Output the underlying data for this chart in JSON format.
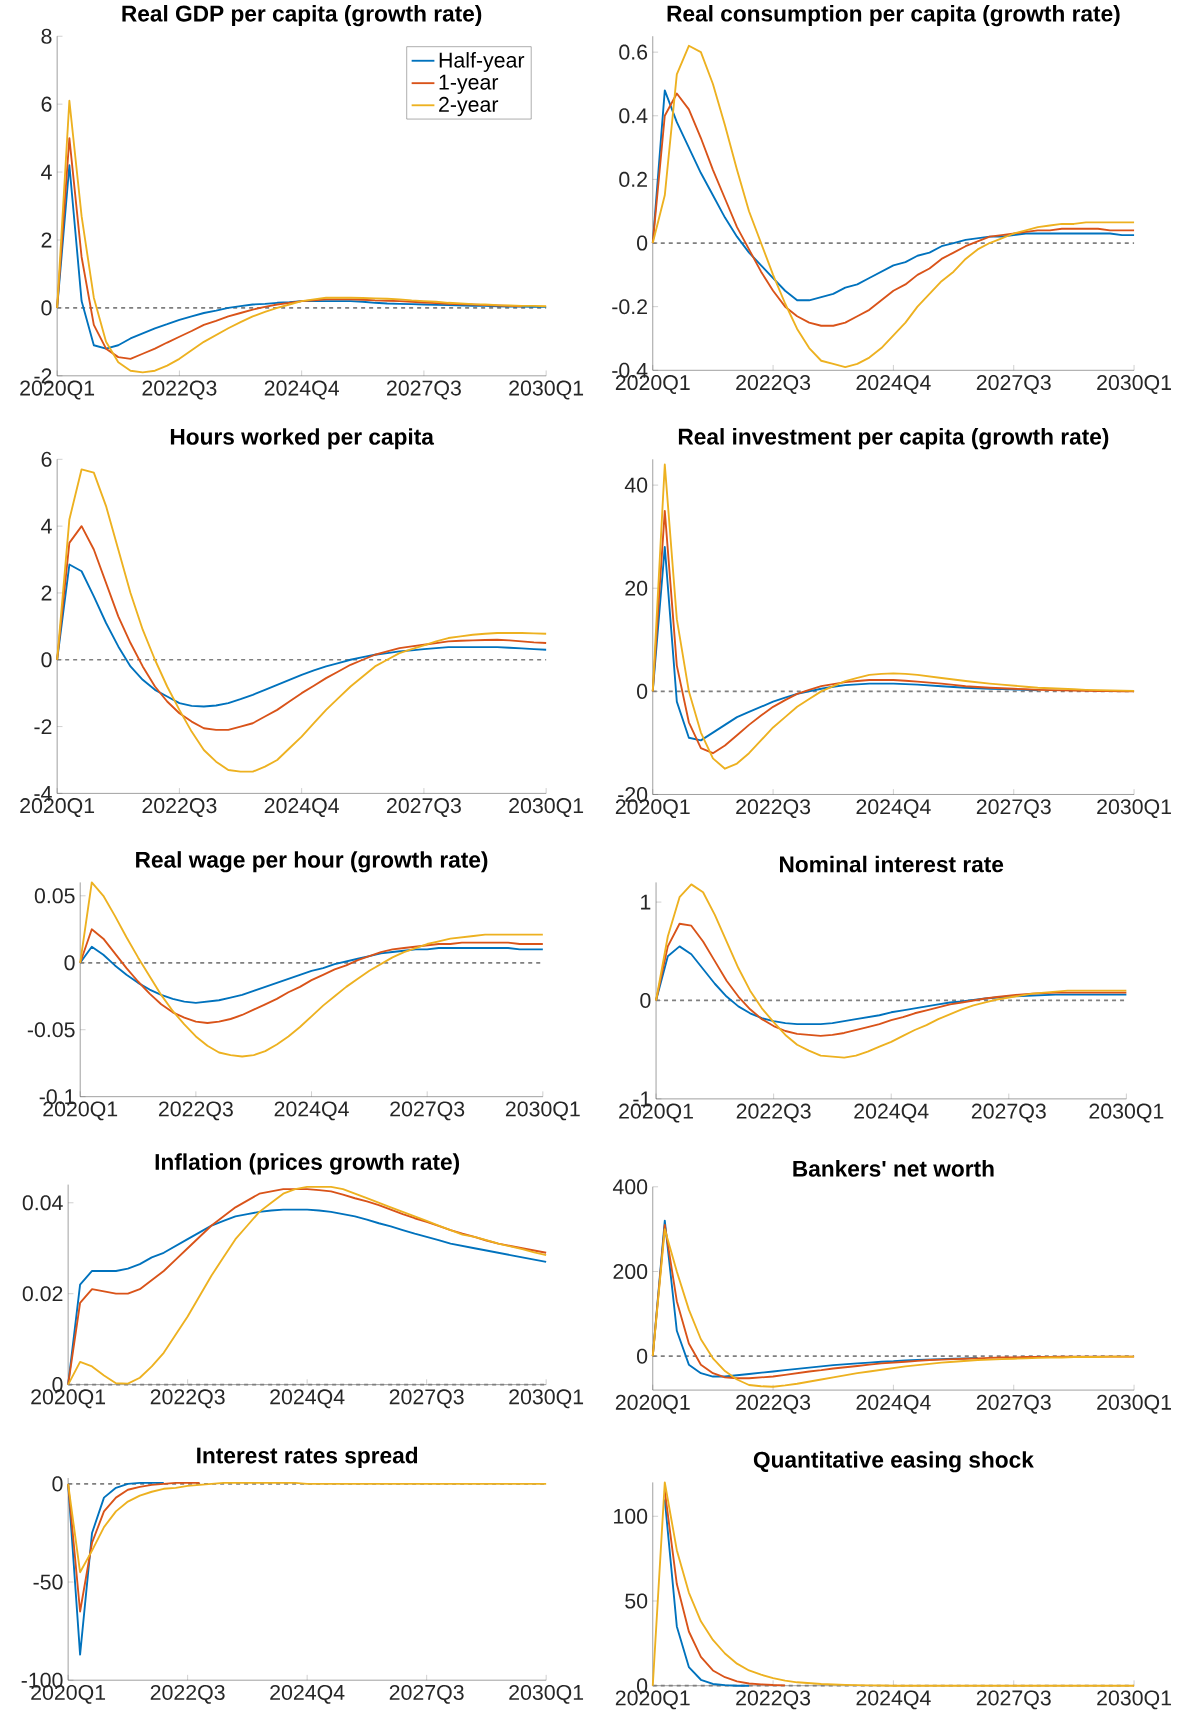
{
  "chart_data": [
    {
      "type": "line",
      "title": "Real GDP per capita (growth rate)",
      "marker": "none",
      "line_style": "solid",
      "legend": "top right",
      "categories": [
        "2020Q1",
        null,
        null,
        null,
        null,
        null,
        null,
        null,
        null,
        null,
        "2022Q3",
        null,
        null,
        null,
        null,
        null,
        null,
        null,
        null,
        null,
        "2024Q4",
        null,
        null,
        null,
        null,
        null,
        null,
        null,
        null,
        null,
        "2027Q3",
        null,
        null,
        null,
        null,
        null,
        null,
        null,
        null,
        null,
        "2030Q1"
      ],
      "ylim": [
        -2,
        8
      ],
      "yticks": [
        -2,
        0,
        2,
        4,
        6,
        8
      ],
      "ref_lines": [
        {
          "axis": "y",
          "value": 0,
          "color": "#7f7f7f",
          "line_style": "dashed"
        }
      ],
      "series": [
        {
          "name": "Half-year",
          "color": "#0072bd",
          "values": [
            0,
            4.2,
            0.2,
            -1.1,
            -1.2,
            -1.1,
            -0.9,
            -0.75,
            -0.6,
            -0.48,
            -0.35,
            -0.25,
            -0.15,
            -0.08,
            0.0,
            0.05,
            0.1,
            0.12,
            0.15,
            0.17,
            0.2,
            0.2,
            0.2,
            0.2,
            0.2,
            0.18,
            0.15,
            0.13,
            0.12,
            0.11,
            0.1,
            0.09,
            0.08,
            0.07,
            0.06,
            0.06,
            0.05,
            0.04,
            0.04,
            0.03,
            0.03
          ]
        },
        {
          "name": "1-year",
          "color": "#d95319",
          "values": [
            0,
            5.0,
            1.5,
            -0.5,
            -1.2,
            -1.45,
            -1.5,
            -1.35,
            -1.2,
            -1.02,
            -0.85,
            -0.68,
            -0.5,
            -0.38,
            -0.25,
            -0.15,
            -0.05,
            0.03,
            0.1,
            0.15,
            0.2,
            0.22,
            0.25,
            0.25,
            0.25,
            0.24,
            0.22,
            0.21,
            0.2,
            0.18,
            0.16,
            0.14,
            0.12,
            0.11,
            0.1,
            0.08,
            0.07,
            0.06,
            0.05,
            null,
            null
          ]
        },
        {
          "name": "2-year",
          "color": "#edb120",
          "values": [
            0,
            6.1,
            2.7,
            0.3,
            -1.0,
            -1.6,
            -1.85,
            -1.9,
            -1.85,
            -1.7,
            -1.5,
            -1.25,
            -1.0,
            -0.8,
            -0.6,
            -0.42,
            -0.25,
            -0.12,
            0.0,
            0.1,
            0.2,
            0.25,
            0.3,
            0.3,
            0.3,
            0.29,
            0.28,
            0.27,
            0.25,
            0.22,
            0.2,
            0.18,
            0.15,
            0.13,
            0.11,
            0.1,
            0.08,
            0.07,
            0.06,
            0.06,
            0.05
          ]
        }
      ]
    },
    {
      "type": "line",
      "title": "Real consumption per capita (growth rate)",
      "marker": "none",
      "line_style": "solid",
      "categories": [
        "2020Q1",
        null,
        null,
        null,
        null,
        null,
        null,
        null,
        null,
        null,
        "2022Q3",
        null,
        null,
        null,
        null,
        null,
        null,
        null,
        null,
        null,
        "2024Q4",
        null,
        null,
        null,
        null,
        null,
        null,
        null,
        null,
        null,
        "2027Q3",
        null,
        null,
        null,
        null,
        null,
        null,
        null,
        null,
        null,
        "2030Q1"
      ],
      "ylim": [
        -0.4,
        0.65
      ],
      "yticks": [
        -0.4,
        -0.2,
        0,
        0.2,
        0.4,
        0.6
      ],
      "ref_lines": [
        {
          "axis": "y",
          "value": 0,
          "color": "#7f7f7f",
          "line_style": "dashed"
        }
      ],
      "series": [
        {
          "color": "#0072bd",
          "values": [
            0,
            0.48,
            0.38,
            0.3,
            0.22,
            0.15,
            0.08,
            0.02,
            -0.03,
            -0.07,
            -0.11,
            -0.15,
            -0.18,
            -0.18,
            -0.17,
            -0.16,
            -0.14,
            -0.13,
            -0.11,
            -0.09,
            -0.07,
            -0.06,
            -0.04,
            -0.03,
            -0.01,
            0.0,
            0.01,
            0.015,
            0.02,
            0.02,
            0.025,
            0.03,
            0.03,
            0.03,
            0.03,
            0.03,
            0.03,
            0.03,
            0.03,
            0.025,
            0.025
          ]
        },
        {
          "color": "#d95319",
          "values": [
            0,
            0.4,
            0.47,
            0.42,
            0.33,
            0.23,
            0.14,
            0.05,
            -0.02,
            -0.09,
            -0.15,
            -0.2,
            -0.23,
            -0.25,
            -0.26,
            -0.26,
            -0.25,
            -0.23,
            -0.21,
            -0.18,
            -0.15,
            -0.13,
            -0.1,
            -0.08,
            -0.05,
            -0.03,
            -0.01,
            0.005,
            0.02,
            0.025,
            0.03,
            0.035,
            0.04,
            0.04,
            0.045,
            0.045,
            0.045,
            0.045,
            0.04,
            0.04,
            0.04
          ]
        },
        {
          "color": "#edb120",
          "values": [
            0,
            0.15,
            0.53,
            0.62,
            0.6,
            0.5,
            0.37,
            0.23,
            0.1,
            0.0,
            -0.1,
            -0.19,
            -0.27,
            -0.33,
            -0.37,
            -0.38,
            -0.39,
            -0.38,
            -0.36,
            -0.33,
            -0.29,
            -0.25,
            -0.2,
            -0.16,
            -0.12,
            -0.09,
            -0.05,
            -0.02,
            0.0,
            0.015,
            0.03,
            0.04,
            0.05,
            0.055,
            0.06,
            0.06,
            0.065,
            0.065,
            0.065,
            0.065,
            0.065
          ]
        }
      ]
    },
    {
      "type": "line",
      "title": "Hours worked per capita",
      "marker": "none",
      "line_style": "solid",
      "categories": [
        "2020Q1",
        null,
        null,
        null,
        null,
        null,
        null,
        null,
        null,
        null,
        "2022Q3",
        null,
        null,
        null,
        null,
        null,
        null,
        null,
        null,
        null,
        "2024Q4",
        null,
        null,
        null,
        null,
        null,
        null,
        null,
        null,
        null,
        "2027Q3",
        null,
        null,
        null,
        null,
        null,
        null,
        null,
        null,
        null,
        "2030Q1"
      ],
      "ylim": [
        -4,
        6
      ],
      "yticks": [
        -4,
        -2,
        0,
        2,
        4,
        6
      ],
      "ref_lines": [
        {
          "axis": "y",
          "value": 0,
          "color": "#7f7f7f",
          "line_style": "dashed"
        }
      ],
      "series": [
        {
          "color": "#0072bd",
          "values": [
            0,
            2.85,
            2.65,
            1.9,
            1.1,
            0.4,
            -0.2,
            -0.6,
            -0.9,
            -1.1,
            -1.3,
            -1.38,
            -1.4,
            -1.37,
            -1.3,
            -1.18,
            -1.05,
            -0.9,
            -0.75,
            -0.6,
            -0.45,
            -0.32,
            -0.2,
            -0.1,
            0.0,
            0.08,
            0.15,
            0.2,
            0.25,
            0.28,
            0.32,
            0.35,
            0.38,
            0.38,
            0.38,
            0.38,
            0.38,
            0.36,
            0.34,
            0.32,
            0.3
          ]
        },
        {
          "color": "#d95319",
          "values": [
            0,
            3.5,
            4.0,
            3.3,
            2.3,
            1.3,
            0.5,
            -0.2,
            -0.8,
            -1.25,
            -1.6,
            -1.85,
            -2.05,
            -2.1,
            -2.1,
            -2.0,
            -1.9,
            -1.7,
            -1.5,
            -1.25,
            -1.0,
            -0.78,
            -0.55,
            -0.35,
            -0.15,
            0.0,
            0.15,
            0.25,
            0.35,
            0.4,
            0.45,
            0.5,
            0.55,
            0.57,
            0.58,
            0.59,
            0.6,
            0.58,
            0.55,
            0.52,
            0.5
          ]
        },
        {
          "color": "#edb120",
          "values": [
            0,
            4.2,
            5.7,
            5.6,
            4.6,
            3.3,
            2.0,
            0.9,
            0.0,
            -0.8,
            -1.5,
            -2.15,
            -2.7,
            -3.05,
            -3.3,
            -3.35,
            -3.35,
            -3.2,
            -3.0,
            -2.65,
            -2.3,
            -1.9,
            -1.5,
            -1.15,
            -0.8,
            -0.5,
            -0.2,
            0.0,
            0.2,
            0.32,
            0.43,
            0.55,
            0.65,
            0.7,
            0.75,
            0.78,
            0.8,
            0.8,
            0.8,
            0.79,
            0.78
          ]
        }
      ]
    },
    {
      "type": "line",
      "title": "Real investment per capita (growth rate)",
      "marker": "none",
      "line_style": "solid",
      "categories": [
        "2020Q1",
        null,
        null,
        null,
        null,
        null,
        null,
        null,
        null,
        null,
        "2022Q3",
        null,
        null,
        null,
        null,
        null,
        null,
        null,
        null,
        null,
        "2024Q4",
        null,
        null,
        null,
        null,
        null,
        null,
        null,
        null,
        null,
        "2027Q3",
        null,
        null,
        null,
        null,
        null,
        null,
        null,
        null,
        null,
        "2030Q1"
      ],
      "ylim": [
        -20,
        45
      ],
      "yticks": [
        -20,
        0,
        20,
        40
      ],
      "ref_lines": [
        {
          "axis": "y",
          "value": 0,
          "color": "#7f7f7f",
          "line_style": "dashed"
        }
      ],
      "series": [
        {
          "color": "#0072bd",
          "values": [
            0,
            28,
            -2,
            -9,
            -9.5,
            -8,
            -6.5,
            -5,
            -4,
            -3,
            -2,
            -1.2,
            -0.5,
            0.0,
            0.5,
            0.9,
            1.2,
            1.35,
            1.5,
            1.5,
            1.5,
            1.4,
            1.3,
            1.15,
            1.0,
            0.85,
            0.7,
            0.6,
            0.5,
            0.42,
            0.35,
            0.28,
            0.2,
            null,
            null,
            null,
            null,
            null,
            null,
            null,
            null
          ]
        },
        {
          "color": "#d95319",
          "values": [
            0,
            35,
            5,
            -6,
            -11,
            -12,
            -10.5,
            -8.5,
            -6.5,
            -4.7,
            -3,
            -1.7,
            -0.5,
            0.3,
            1.0,
            1.4,
            1.8,
            2.0,
            2.2,
            2.2,
            2.2,
            2.05,
            1.9,
            1.7,
            1.5,
            1.25,
            1.0,
            0.85,
            0.7,
            0.6,
            0.5,
            0.4,
            0.3,
            0.25,
            0.2,
            0.15,
            0.1,
            0.08,
            0.05,
            0.02,
            0.0
          ]
        },
        {
          "color": "#edb120",
          "values": [
            0,
            44,
            14,
            0,
            -8,
            -13,
            -15,
            -14,
            -12,
            -9.5,
            -7,
            -5,
            -3,
            -1.5,
            0,
            1.0,
            2,
            2.6,
            3.2,
            3.4,
            3.5,
            3.4,
            3.2,
            2.9,
            2.6,
            2.3,
            2.0,
            1.75,
            1.5,
            1.3,
            1.1,
            0.9,
            0.7,
            0.6,
            0.5,
            0.4,
            0.3,
            0.25,
            0.2,
            0.15,
            0.1
          ]
        }
      ]
    },
    {
      "type": "line",
      "title": "Real wage per hour (growth rate)",
      "marker": "none",
      "line_style": "solid",
      "categories": [
        "2020Q1",
        null,
        null,
        null,
        null,
        null,
        null,
        null,
        null,
        null,
        "2022Q3",
        null,
        null,
        null,
        null,
        null,
        null,
        null,
        null,
        null,
        "2024Q4",
        null,
        null,
        null,
        null,
        null,
        null,
        null,
        null,
        null,
        "2027Q3",
        null,
        null,
        null,
        null,
        null,
        null,
        null,
        null,
        null,
        "2030Q1"
      ],
      "ylim": [
        -0.1,
        0.06
      ],
      "yticks": [
        -0.1,
        -0.05,
        0,
        0.05
      ],
      "ref_lines": [
        {
          "axis": "y",
          "value": 0,
          "color": "#7f7f7f",
          "line_style": "dashed"
        }
      ],
      "series": [
        {
          "color": "#0072bd",
          "values": [
            0,
            0.012,
            0.006,
            -0.002,
            -0.009,
            -0.015,
            -0.02,
            -0.024,
            -0.027,
            -0.029,
            -0.03,
            -0.029,
            -0.028,
            -0.026,
            -0.024,
            -0.021,
            -0.018,
            -0.015,
            -0.012,
            -0.009,
            -0.006,
            -0.004,
            -0.001,
            0.001,
            0.003,
            0.005,
            0.007,
            0.008,
            0.009,
            0.01,
            0.01,
            0.011,
            0.011,
            0.011,
            0.011,
            0.011,
            0.011,
            0.011,
            0.01,
            0.01,
            0.01
          ]
        },
        {
          "color": "#d95319",
          "values": [
            0,
            0.025,
            0.018,
            0.007,
            -0.004,
            -0.014,
            -0.023,
            -0.031,
            -0.037,
            -0.041,
            -0.044,
            -0.045,
            -0.044,
            -0.042,
            -0.039,
            -0.035,
            -0.031,
            -0.027,
            -0.022,
            -0.018,
            -0.013,
            -0.009,
            -0.005,
            -0.002,
            0.002,
            0.005,
            0.008,
            0.01,
            0.011,
            0.012,
            0.013,
            0.014,
            0.014,
            0.015,
            0.015,
            0.015,
            0.015,
            0.015,
            0.014,
            0.014,
            0.014
          ]
        },
        {
          "color": "#edb120",
          "values": [
            0,
            0.06,
            0.05,
            0.035,
            0.019,
            0.004,
            -0.01,
            -0.024,
            -0.036,
            -0.046,
            -0.055,
            -0.062,
            -0.067,
            -0.069,
            -0.07,
            -0.069,
            -0.066,
            -0.061,
            -0.055,
            -0.048,
            -0.04,
            -0.032,
            -0.025,
            -0.018,
            -0.012,
            -0.006,
            -0.001,
            0.004,
            0.008,
            0.011,
            0.014,
            0.016,
            0.018,
            0.019,
            0.02,
            0.021,
            0.021,
            0.021,
            0.021,
            0.021,
            0.021
          ]
        }
      ]
    },
    {
      "type": "line",
      "title": "Nominal interest rate",
      "marker": "none",
      "line_style": "solid",
      "categories": [
        "2020Q1",
        null,
        null,
        null,
        null,
        null,
        null,
        null,
        null,
        null,
        "2022Q3",
        null,
        null,
        null,
        null,
        null,
        null,
        null,
        null,
        null,
        "2024Q4",
        null,
        null,
        null,
        null,
        null,
        null,
        null,
        null,
        null,
        "2027Q3",
        null,
        null,
        null,
        null,
        null,
        null,
        null,
        null,
        null,
        "2030Q1"
      ],
      "ylim": [
        -1,
        1.2
      ],
      "yticks": [
        -1,
        0,
        1
      ],
      "ref_lines": [
        {
          "axis": "y",
          "value": 0,
          "color": "#7f7f7f",
          "line_style": "dashed"
        }
      ],
      "series": [
        {
          "color": "#0072bd",
          "values": [
            0,
            0.45,
            0.55,
            0.47,
            0.32,
            0.17,
            0.04,
            -0.06,
            -0.13,
            -0.18,
            -0.21,
            -0.23,
            -0.24,
            -0.24,
            -0.24,
            -0.23,
            -0.21,
            -0.19,
            -0.17,
            -0.15,
            -0.12,
            -0.1,
            -0.08,
            -0.06,
            -0.04,
            -0.02,
            -0.01,
            0.005,
            0.02,
            0.03,
            0.04,
            0.045,
            0.05,
            0.055,
            0.06,
            0.06,
            0.06,
            0.06,
            0.06,
            0.06,
            0.06
          ]
        },
        {
          "color": "#d95319",
          "values": [
            0,
            0.55,
            0.78,
            0.76,
            0.6,
            0.4,
            0.2,
            0.04,
            -0.09,
            -0.19,
            -0.26,
            -0.31,
            -0.34,
            -0.35,
            -0.36,
            -0.35,
            -0.33,
            -0.3,
            -0.27,
            -0.24,
            -0.2,
            -0.17,
            -0.13,
            -0.1,
            -0.07,
            -0.04,
            -0.02,
            0.0,
            0.02,
            0.035,
            0.05,
            0.06,
            0.07,
            0.075,
            0.08,
            0.08,
            0.08,
            0.08,
            0.08,
            0.08,
            0.08
          ]
        },
        {
          "color": "#edb120",
          "values": [
            0,
            0.65,
            1.05,
            1.18,
            1.1,
            0.87,
            0.6,
            0.33,
            0.1,
            -0.08,
            -0.22,
            -0.35,
            -0.45,
            -0.51,
            -0.56,
            -0.57,
            -0.58,
            -0.56,
            -0.52,
            -0.47,
            -0.42,
            -0.36,
            -0.3,
            -0.25,
            -0.19,
            -0.14,
            -0.09,
            -0.05,
            -0.02,
            0.01,
            0.03,
            0.05,
            0.07,
            0.08,
            0.09,
            0.1,
            0.1,
            0.1,
            0.1,
            0.1,
            0.1
          ]
        }
      ]
    },
    {
      "type": "line",
      "title": "Inflation (prices growth rate)",
      "marker": "none",
      "line_style": "solid",
      "categories": [
        "2020Q1",
        null,
        null,
        null,
        null,
        null,
        null,
        null,
        null,
        null,
        "2022Q3",
        null,
        null,
        null,
        null,
        null,
        null,
        null,
        null,
        null,
        "2024Q4",
        null,
        null,
        null,
        null,
        null,
        null,
        null,
        null,
        null,
        "2027Q3",
        null,
        null,
        null,
        null,
        null,
        null,
        null,
        null,
        null,
        "2030Q1"
      ],
      "ylim": [
        0,
        0.044
      ],
      "yticks": [
        0,
        0.02,
        0.04
      ],
      "ref_lines": [
        {
          "axis": "y",
          "value": 0,
          "color": "#7f7f7f",
          "line_style": "dashed"
        }
      ],
      "series": [
        {
          "color": "#0072bd",
          "values": [
            0,
            0.022,
            0.025,
            0.025,
            0.025,
            0.0255,
            0.0265,
            0.028,
            0.029,
            0.0305,
            0.032,
            0.0335,
            0.035,
            0.036,
            0.037,
            0.0375,
            0.038,
            0.0383,
            0.0385,
            0.0385,
            0.0385,
            0.0383,
            0.038,
            0.0375,
            0.037,
            0.0363,
            0.0355,
            0.0348,
            0.034,
            0.0332,
            0.0325,
            0.0318,
            0.031,
            0.0305,
            0.03,
            0.0295,
            0.029,
            0.0285,
            0.028,
            0.0275,
            0.027
          ]
        },
        {
          "color": "#d95319",
          "values": [
            0,
            0.018,
            0.021,
            0.0205,
            0.02,
            0.02,
            0.021,
            0.023,
            0.025,
            0.0275,
            0.03,
            0.0325,
            0.035,
            0.037,
            0.039,
            0.0405,
            0.042,
            0.0425,
            0.043,
            0.043,
            0.043,
            0.0428,
            0.0425,
            0.0418,
            0.041,
            0.0403,
            0.0395,
            0.0385,
            0.0375,
            0.0366,
            0.0358,
            0.0349,
            0.034,
            0.0332,
            0.0325,
            0.0317,
            0.031,
            0.0305,
            0.03,
            0.0295,
            0.029
          ]
        },
        {
          "color": "#edb120",
          "values": [
            0,
            0.005,
            0.004,
            0.002,
            0.0003,
            0.0002,
            0.0015,
            0.004,
            0.007,
            0.011,
            0.015,
            0.0195,
            0.024,
            0.028,
            0.032,
            0.035,
            0.038,
            0.04,
            0.042,
            0.043,
            0.0435,
            0.0435,
            0.0435,
            0.043,
            0.042,
            0.041,
            0.04,
            0.039,
            0.038,
            0.037,
            0.036,
            0.035,
            0.034,
            0.033,
            0.0325,
            0.0318,
            0.031,
            0.0304,
            0.0298,
            0.0291,
            0.0285
          ]
        }
      ]
    },
    {
      "type": "line",
      "title": "Bankers' net worth",
      "marker": "none",
      "line_style": "solid",
      "categories": [
        "2020Q1",
        null,
        null,
        null,
        null,
        null,
        null,
        null,
        null,
        null,
        "2022Q3",
        null,
        null,
        null,
        null,
        null,
        null,
        null,
        null,
        null,
        "2024Q4",
        null,
        null,
        null,
        null,
        null,
        null,
        null,
        null,
        null,
        "2027Q3",
        null,
        null,
        null,
        null,
        null,
        null,
        null,
        null,
        null,
        "2030Q1"
      ],
      "ylim": [
        -80,
        400
      ],
      "yticks": [
        0,
        200,
        400
      ],
      "ref_lines": [
        {
          "axis": "y",
          "value": 0,
          "color": "#7f7f7f",
          "line_style": "dashed"
        }
      ],
      "series": [
        {
          "color": "#0072bd",
          "values": [
            0,
            320,
            60,
            -20,
            -40,
            -48,
            -48,
            -45,
            -42,
            -39,
            -36,
            -33,
            -30,
            -27,
            -24,
            -21,
            -19,
            -17,
            -15,
            -13,
            -12,
            -10,
            -9,
            -8,
            -7,
            -6,
            -5,
            -4,
            null,
            null,
            null,
            null,
            null,
            null,
            null,
            null,
            null,
            null,
            null,
            null,
            null
          ]
        },
        {
          "color": "#d95319",
          "values": [
            0,
            310,
            130,
            30,
            -20,
            -40,
            -50,
            -52,
            -52,
            -50,
            -48,
            -44,
            -40,
            -36,
            -33,
            -29,
            -26,
            -23,
            -20,
            -17,
            -15,
            -13,
            -11,
            -9,
            -8,
            -7,
            -6,
            -5,
            -4,
            -3,
            -3,
            -2,
            -2,
            -2,
            -1,
            -1,
            -1,
            -1,
            -1,
            -1,
            -1
          ]
        },
        {
          "color": "#edb120",
          "values": [
            0,
            300,
            200,
            110,
            40,
            -5,
            -35,
            -55,
            -68,
            -71,
            -72,
            -69,
            -65,
            -60,
            -55,
            -50,
            -45,
            -40,
            -36,
            -32,
            -28,
            -24,
            -21,
            -18,
            -15,
            -13,
            -11,
            -9,
            -8,
            -7,
            -6,
            -5,
            -4,
            -3,
            -3,
            -2,
            -2,
            -2,
            -1,
            -1,
            -1
          ]
        }
      ]
    },
    {
      "type": "line",
      "title": "Interest rates spread",
      "marker": "none",
      "line_style": "solid",
      "categories": [
        "2020Q1",
        null,
        null,
        null,
        null,
        null,
        null,
        null,
        null,
        null,
        "2022Q3",
        null,
        null,
        null,
        null,
        null,
        null,
        null,
        null,
        null,
        "2024Q4",
        null,
        null,
        null,
        null,
        null,
        null,
        null,
        null,
        null,
        "2027Q3",
        null,
        null,
        null,
        null,
        null,
        null,
        null,
        null,
        null,
        "2030Q1"
      ],
      "ylim": [
        -100,
        3
      ],
      "yticks": [
        -100,
        -50,
        0
      ],
      "ref_lines": [
        {
          "axis": "y",
          "value": 0,
          "color": "#7f7f7f",
          "line_style": "dashed"
        }
      ],
      "series": [
        {
          "color": "#0072bd",
          "values": [
            0,
            -87,
            -25,
            -7,
            -2,
            0,
            0.5,
            0.5,
            0.5,
            null,
            null,
            null,
            null,
            null,
            null,
            null,
            null,
            null,
            null,
            null,
            null,
            null,
            null,
            null,
            null,
            null,
            null,
            null,
            null,
            null,
            null,
            null,
            null,
            null,
            null,
            null,
            null,
            null,
            null,
            null,
            null
          ]
        },
        {
          "color": "#d95319",
          "values": [
            0,
            -65,
            -30,
            -14,
            -7,
            -3,
            -1.5,
            -0.5,
            0,
            0.5,
            0.5,
            0.5,
            null,
            null,
            null,
            null,
            null,
            null,
            null,
            null,
            null,
            null,
            null,
            null,
            null,
            null,
            null,
            null,
            null,
            null,
            null,
            null,
            null,
            null,
            null,
            null,
            null,
            null,
            null,
            null,
            null
          ]
        },
        {
          "color": "#edb120",
          "values": [
            0,
            -45,
            -34,
            -22,
            -14,
            -9,
            -6,
            -4,
            -2.5,
            -2,
            -1,
            -0.5,
            0,
            0.5,
            0.5,
            0.5,
            0.5,
            0.5,
            0.5,
            0.5,
            0,
            0,
            0,
            0,
            0,
            0,
            0,
            0,
            0,
            0,
            0,
            0,
            0,
            0,
            0,
            0,
            0,
            0,
            0,
            0,
            0
          ]
        }
      ]
    },
    {
      "type": "line",
      "title": "Quantitative easing shock",
      "marker": "none",
      "line_style": "solid",
      "categories": [
        "2020Q1",
        null,
        null,
        null,
        null,
        null,
        null,
        null,
        null,
        null,
        "2022Q3",
        null,
        null,
        null,
        null,
        null,
        null,
        null,
        null,
        null,
        "2024Q4",
        null,
        null,
        null,
        null,
        null,
        null,
        null,
        null,
        null,
        "2027Q3",
        null,
        null,
        null,
        null,
        null,
        null,
        null,
        null,
        null,
        "2030Q1"
      ],
      "ylim": [
        0,
        120
      ],
      "yticks": [
        0,
        50,
        100
      ],
      "ref_lines": [
        {
          "axis": "y",
          "value": 0,
          "color": "#7f7f7f",
          "line_style": "dashed"
        }
      ],
      "series": [
        {
          "color": "#0072bd",
          "values": [
            null,
            110,
            35,
            11,
            3.5,
            1,
            0.3,
            0,
            0,
            null,
            null,
            null,
            null,
            null,
            null,
            null,
            null,
            null,
            null,
            null,
            null,
            null,
            null,
            null,
            null,
            null,
            null,
            null,
            null,
            null,
            null,
            null,
            null,
            null,
            null,
            null,
            null,
            null,
            null,
            null,
            null
          ]
        },
        {
          "color": "#d95319",
          "values": [
            null,
            115,
            60,
            32,
            17,
            9,
            5,
            2.5,
            1.3,
            0.8,
            0.4,
            0.2,
            null,
            null,
            null,
            null,
            null,
            null,
            null,
            null,
            null,
            null,
            null,
            null,
            null,
            null,
            null,
            null,
            null,
            null,
            null,
            null,
            null,
            null,
            null,
            null,
            null,
            null,
            null,
            null,
            null
          ]
        },
        {
          "color": "#edb120",
          "values": [
            0,
            120,
            80,
            55,
            38,
            27,
            19,
            13,
            9,
            6.5,
            4.5,
            3,
            2,
            1.5,
            1,
            0.7,
            0.5,
            0.3,
            0.2,
            0.1,
            0,
            0,
            0,
            0,
            0,
            0,
            0,
            0,
            0,
            0,
            0,
            0,
            0,
            0,
            0,
            0,
            0,
            0,
            0,
            0,
            0
          ]
        }
      ]
    }
  ]
}
